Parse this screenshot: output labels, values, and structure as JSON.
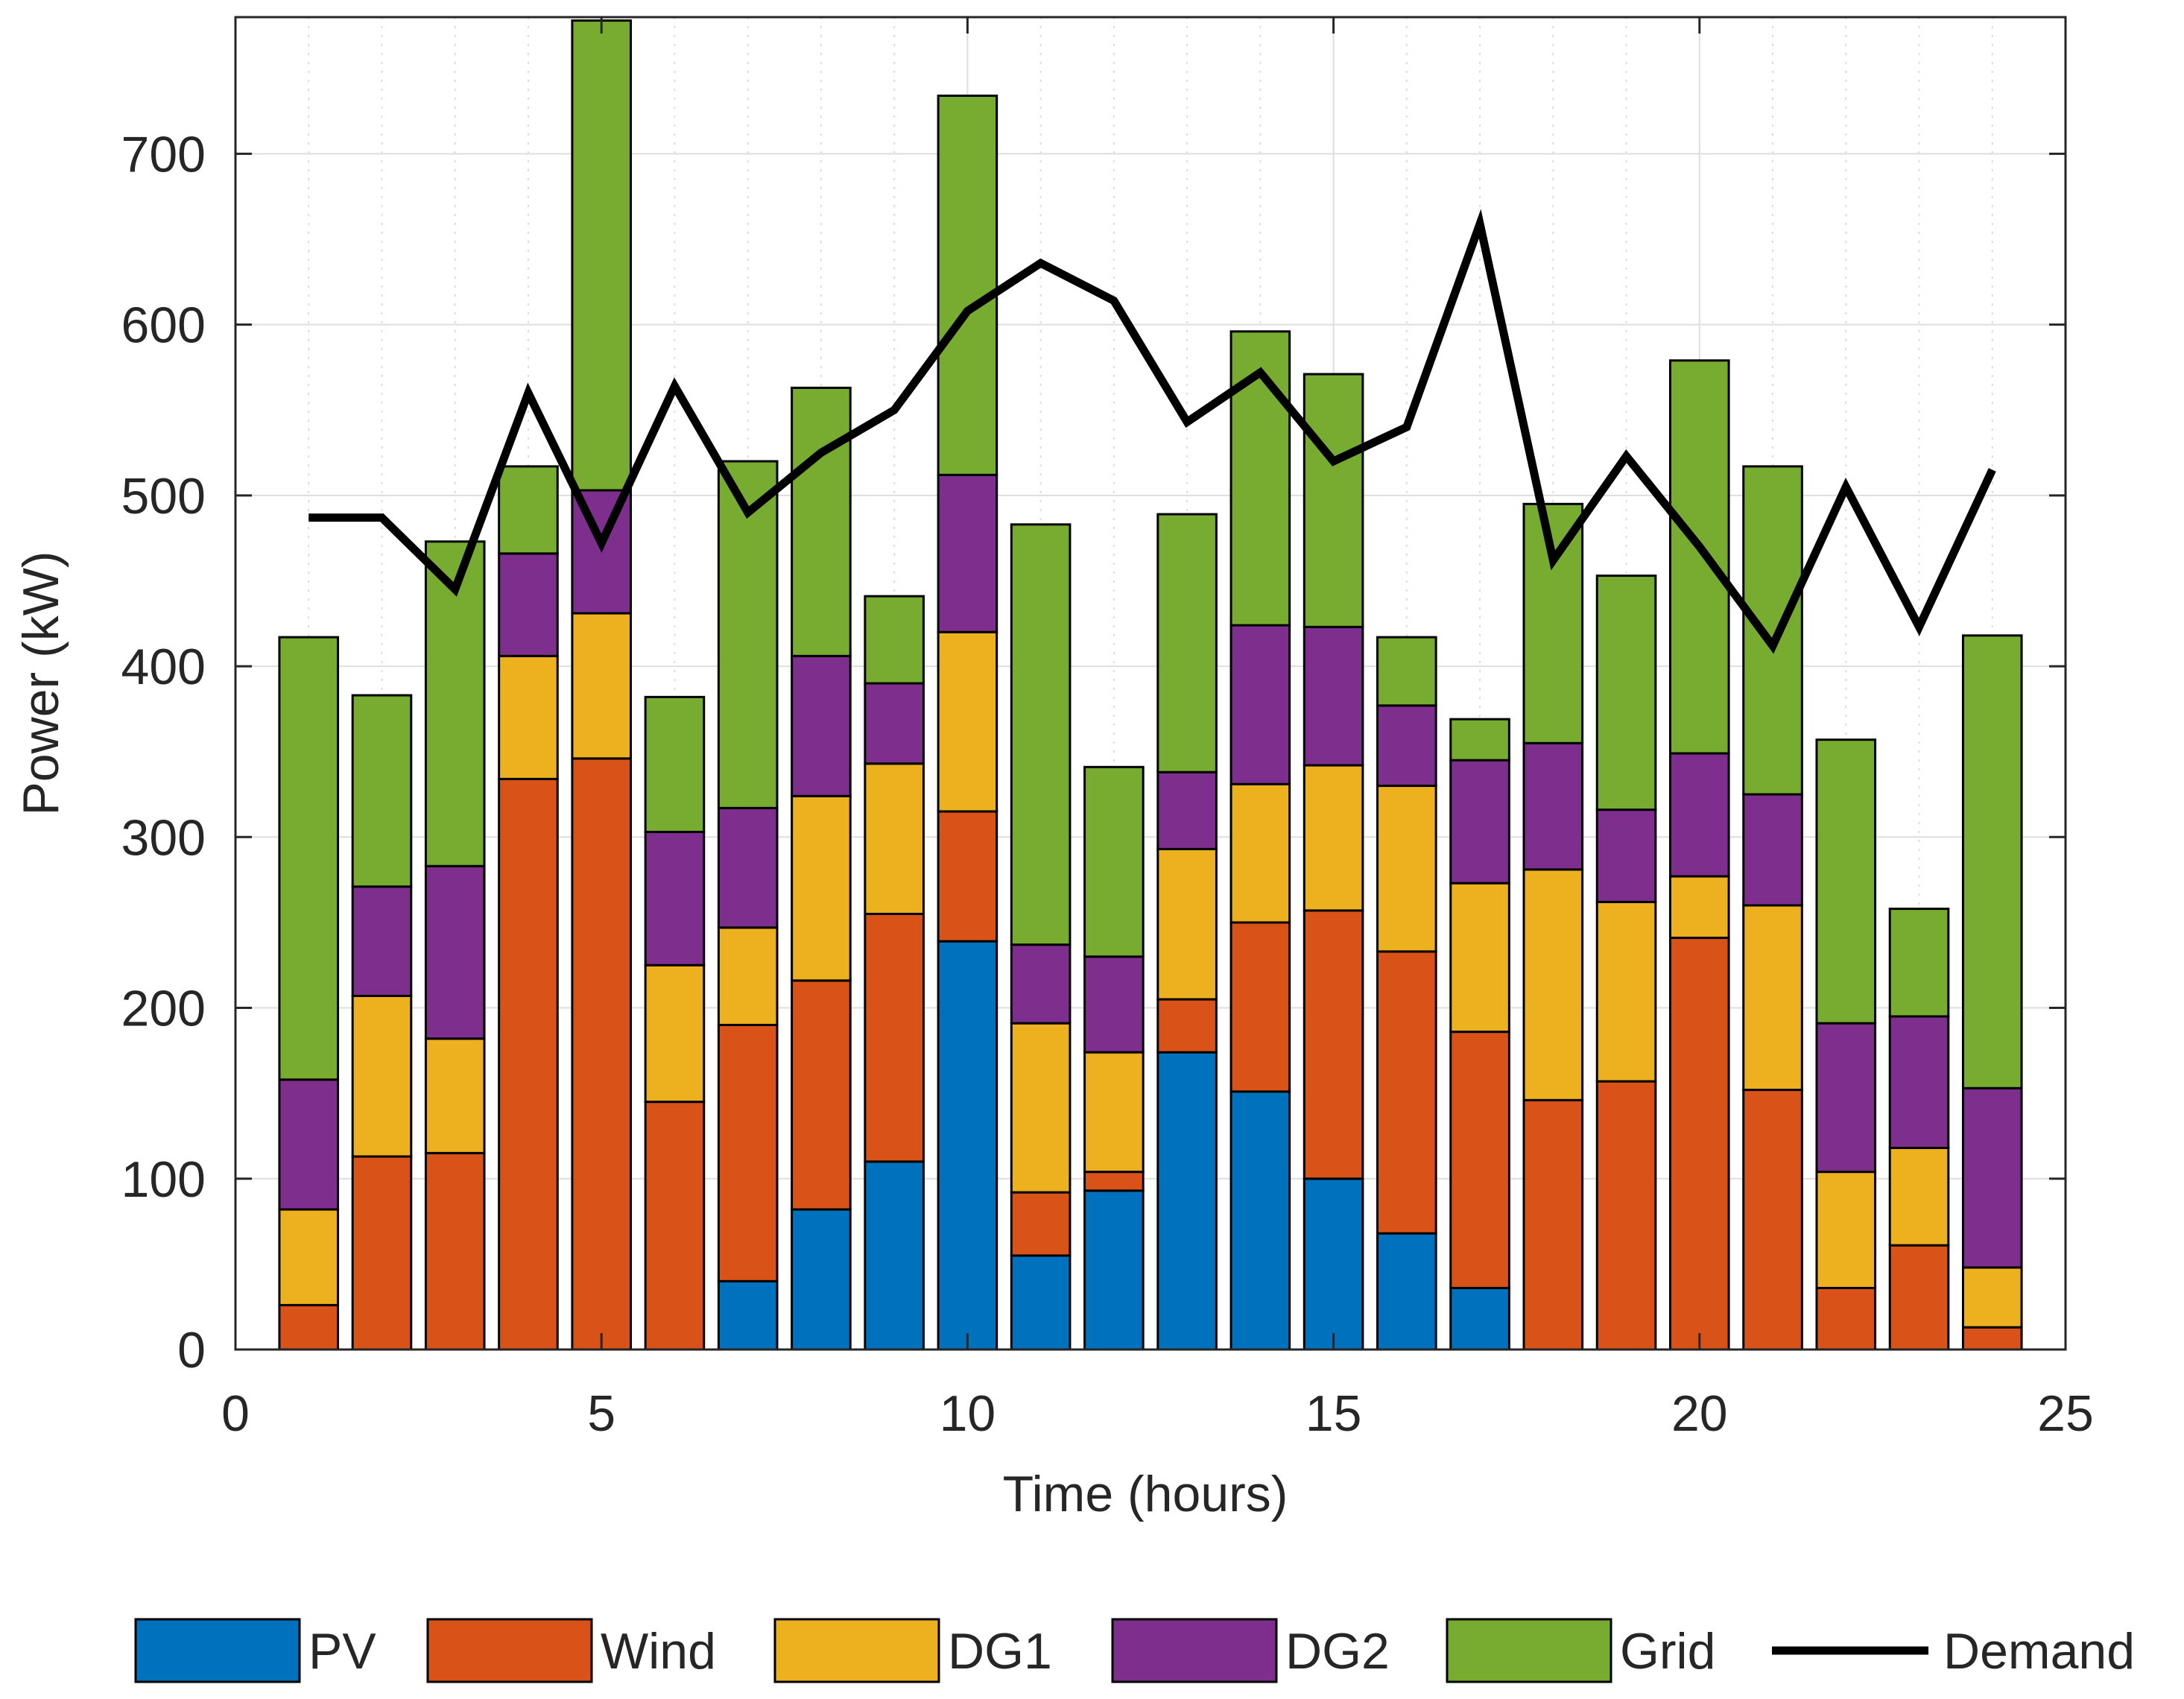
{
  "chart_data": {
    "type": "bar",
    "stacked": true,
    "xlabel": "Time (hours)",
    "ylabel": "Power (kW)",
    "xlim": [
      0,
      25
    ],
    "ylim": [
      0,
      780
    ],
    "xticks": [
      "0",
      "5",
      "10",
      "15",
      "20",
      "25"
    ],
    "yticks": [
      "0",
      "100",
      "200",
      "300",
      "400",
      "500",
      "600",
      "700"
    ],
    "grid": true,
    "legend_position": "bottom",
    "x": [
      1,
      2,
      3,
      4,
      5,
      6,
      7,
      8,
      9,
      10,
      11,
      12,
      13,
      14,
      15,
      16,
      17,
      18,
      19,
      20,
      21,
      22,
      23,
      24
    ],
    "series": [
      {
        "name": "PV",
        "color": "#0072BD",
        "values": [
          0,
          0,
          0,
          0,
          0,
          0,
          40,
          82,
          110,
          239,
          55,
          93,
          174,
          151,
          100,
          68,
          36,
          0,
          0,
          0,
          0,
          0,
          0,
          0
        ]
      },
      {
        "name": "Wind",
        "color": "#D95319",
        "values": [
          26,
          113,
          115,
          334,
          346,
          145,
          150,
          134,
          145,
          76,
          37,
          11,
          31,
          99,
          157,
          165,
          150,
          146,
          157,
          241,
          152,
          36,
          61,
          13
        ]
      },
      {
        "name": "DG1",
        "color": "#EDB120",
        "values": [
          56,
          94,
          67,
          72,
          85,
          80,
          57,
          108,
          88,
          105,
          99,
          70,
          88,
          81,
          85,
          97,
          87,
          135,
          105,
          36,
          108,
          68,
          57,
          35
        ]
      },
      {
        "name": "DG2",
        "color": "#7E2F8E",
        "values": [
          76,
          64,
          101,
          60,
          72,
          78,
          70,
          82,
          47,
          92,
          46,
          56,
          45,
          93,
          81,
          47,
          72,
          74,
          54,
          72,
          65,
          87,
          77,
          105
        ]
      },
      {
        "name": "Grid",
        "color": "#77AC30",
        "values": [
          259,
          112,
          190,
          51,
          275,
          79,
          203,
          157,
          51,
          222,
          246,
          111,
          151,
          172,
          148,
          40,
          24,
          140,
          137,
          230,
          192,
          166,
          63,
          265
        ]
      }
    ],
    "line": {
      "name": "Demand",
      "color": "#000000",
      "values": [
        487,
        487,
        445,
        560,
        472,
        564,
        490,
        525,
        550,
        608,
        636,
        614,
        543,
        572,
        520,
        540,
        659,
        462,
        523,
        470,
        412,
        505,
        423,
        515
      ]
    }
  }
}
